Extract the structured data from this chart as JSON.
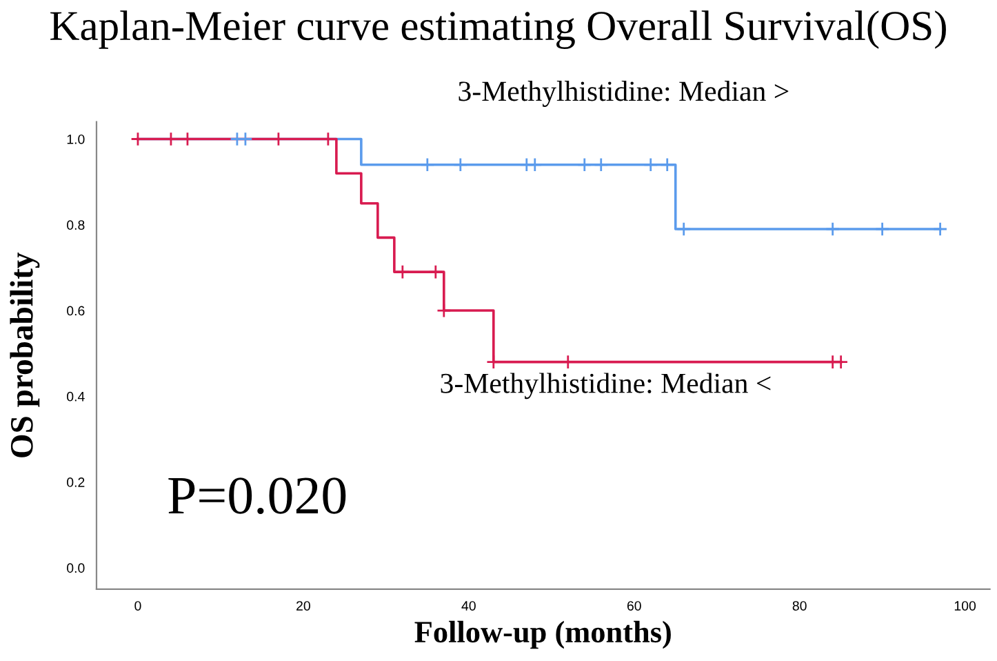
{
  "chart_data": {
    "type": "step",
    "title": "Kaplan-Meier curve estimating Overall Survival(OS)",
    "xlabel": "Follow-up (months)",
    "ylabel": "OS probability",
    "xlim": [
      -5,
      103
    ],
    "ylim": [
      -0.05,
      1.04
    ],
    "xticks": [
      0,
      20,
      40,
      60,
      80,
      100
    ],
    "yticks": [
      {
        "value": 0,
        "label": "0.0"
      },
      {
        "value": 0.2,
        "label": "0.2"
      },
      {
        "value": 0.4,
        "label": "0.4"
      },
      {
        "value": 0.6,
        "label": "0.6"
      },
      {
        "value": 0.8,
        "label": "0.8"
      },
      {
        "value": 1,
        "label": "1.0"
      }
    ],
    "grid": false,
    "legend": false,
    "line_style": "solid",
    "annotations": [
      "P=0.020"
    ],
    "series": [
      {
        "name": "3-Methylhistidine: Median >",
        "color": "#5b9bec",
        "x": [
          0,
          27,
          65,
          97
        ],
        "values": [
          1,
          0.94,
          0.79,
          0.79
        ]
      },
      {
        "name": "3-Methylhistidine: Median <",
        "color": "#d81b50",
        "x": [
          0,
          24,
          27,
          29,
          31,
          37,
          43,
          85
        ],
        "values": [
          1,
          0.92,
          0.85,
          0.77,
          0.69,
          0.6,
          0.48,
          0.48
        ]
      },
      {
        "type": "scatter",
        "marker": "cross",
        "color": "#5b9bec",
        "x": [
          12,
          13,
          35,
          39,
          47,
          48,
          54,
          56,
          62,
          64,
          66,
          84,
          90,
          97
        ],
        "values": [
          1,
          1,
          0.94,
          0.94,
          0.94,
          0.94,
          0.94,
          0.94,
          0.94,
          0.94,
          0.79,
          0.79,
          0.79,
          0.79
        ]
      },
      {
        "type": "scatter",
        "marker": "cross",
        "color": "#d81b50",
        "x": [
          0,
          4,
          6,
          17,
          23,
          32,
          36,
          37,
          43,
          52,
          84,
          85
        ],
        "values": [
          1,
          1,
          1,
          1,
          1,
          0.69,
          0.69,
          0.6,
          0.48,
          0.48,
          0.48,
          0.48
        ]
      }
    ]
  }
}
